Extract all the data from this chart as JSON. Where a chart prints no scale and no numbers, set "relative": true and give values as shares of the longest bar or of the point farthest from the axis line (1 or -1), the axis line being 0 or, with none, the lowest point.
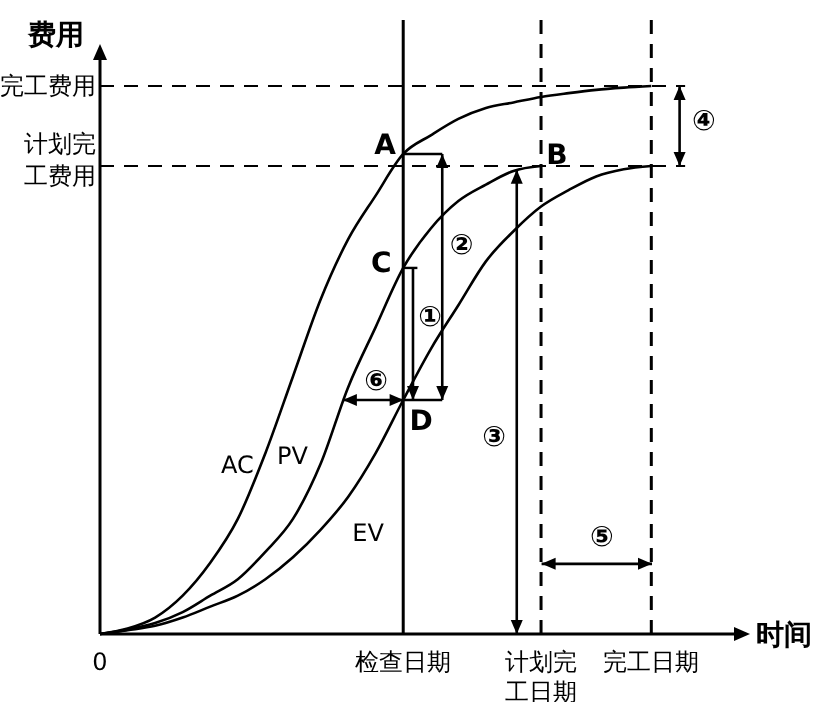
{
  "chart_data": {
    "type": "line",
    "relative": true,
    "ylabel": "费用",
    "xlabel": "时间",
    "categories": [
      "0",
      null,
      null,
      null,
      null,
      null,
      null,
      null,
      null,
      null,
      null,
      "检查日期",
      null,
      null,
      null,
      null,
      "计划完工日期",
      null,
      null,
      null,
      "完工日期",
      null,
      null,
      null
    ],
    "series": [
      {
        "name": "AC",
        "color": "#000000",
        "values": [
          0,
          0.01,
          0.03,
          0.07,
          0.13,
          0.21,
          0.33,
          0.47,
          0.61,
          0.72,
          0.8,
          0.876,
          0.91,
          0.94,
          0.96,
          0.97,
          0.98,
          0.987,
          0.993,
          0.997,
          1,
          null,
          null,
          null
        ]
      },
      {
        "name": "PV",
        "color": "#000000",
        "values": [
          0,
          0.008,
          0.02,
          0.04,
          0.07,
          0.1,
          0.15,
          0.21,
          0.31,
          0.45,
          0.56,
          0.668,
          0.74,
          0.79,
          0.82,
          0.845,
          0.854,
          null,
          null,
          null,
          null,
          null,
          null,
          null
        ]
      },
      {
        "name": "EV",
        "color": "#000000",
        "values": [
          0,
          0.007,
          0.015,
          0.03,
          0.05,
          0.07,
          0.1,
          0.14,
          0.19,
          0.25,
          0.33,
          0.427,
          0.52,
          0.6,
          0.68,
          0.735,
          0.78,
          0.81,
          0.835,
          0.848,
          0.854,
          null,
          null,
          null
        ]
      }
    ],
    "ref_lines": [
      {
        "axis": "y",
        "value": 1,
        "label": "完工费用",
        "line_style": "dashed"
      },
      {
        "axis": "y",
        "value": 0.854,
        "label": "计划完工费用",
        "line_style": "dashed"
      },
      {
        "axis": "x",
        "value": "检查日期",
        "line_style": "solid"
      },
      {
        "axis": "x",
        "value": "计划完工日期",
        "line_style": "dashed"
      },
      {
        "axis": "x",
        "value": "完工日期",
        "line_style": "dashed"
      }
    ],
    "annotations": [
      {
        "text": "A",
        "x": "检查日期",
        "y": 0.876
      },
      {
        "text": "B",
        "x": "计划完工日期",
        "y": 0.854
      },
      {
        "text": "C",
        "x": "检查日期",
        "y": 0.668
      },
      {
        "text": "D",
        "x": "检查日期",
        "y": 0.427
      },
      "①",
      "②",
      "③",
      "④",
      "⑤",
      "⑥"
    ],
    "marker": "none",
    "line_style": "solid",
    "grid": false
  }
}
